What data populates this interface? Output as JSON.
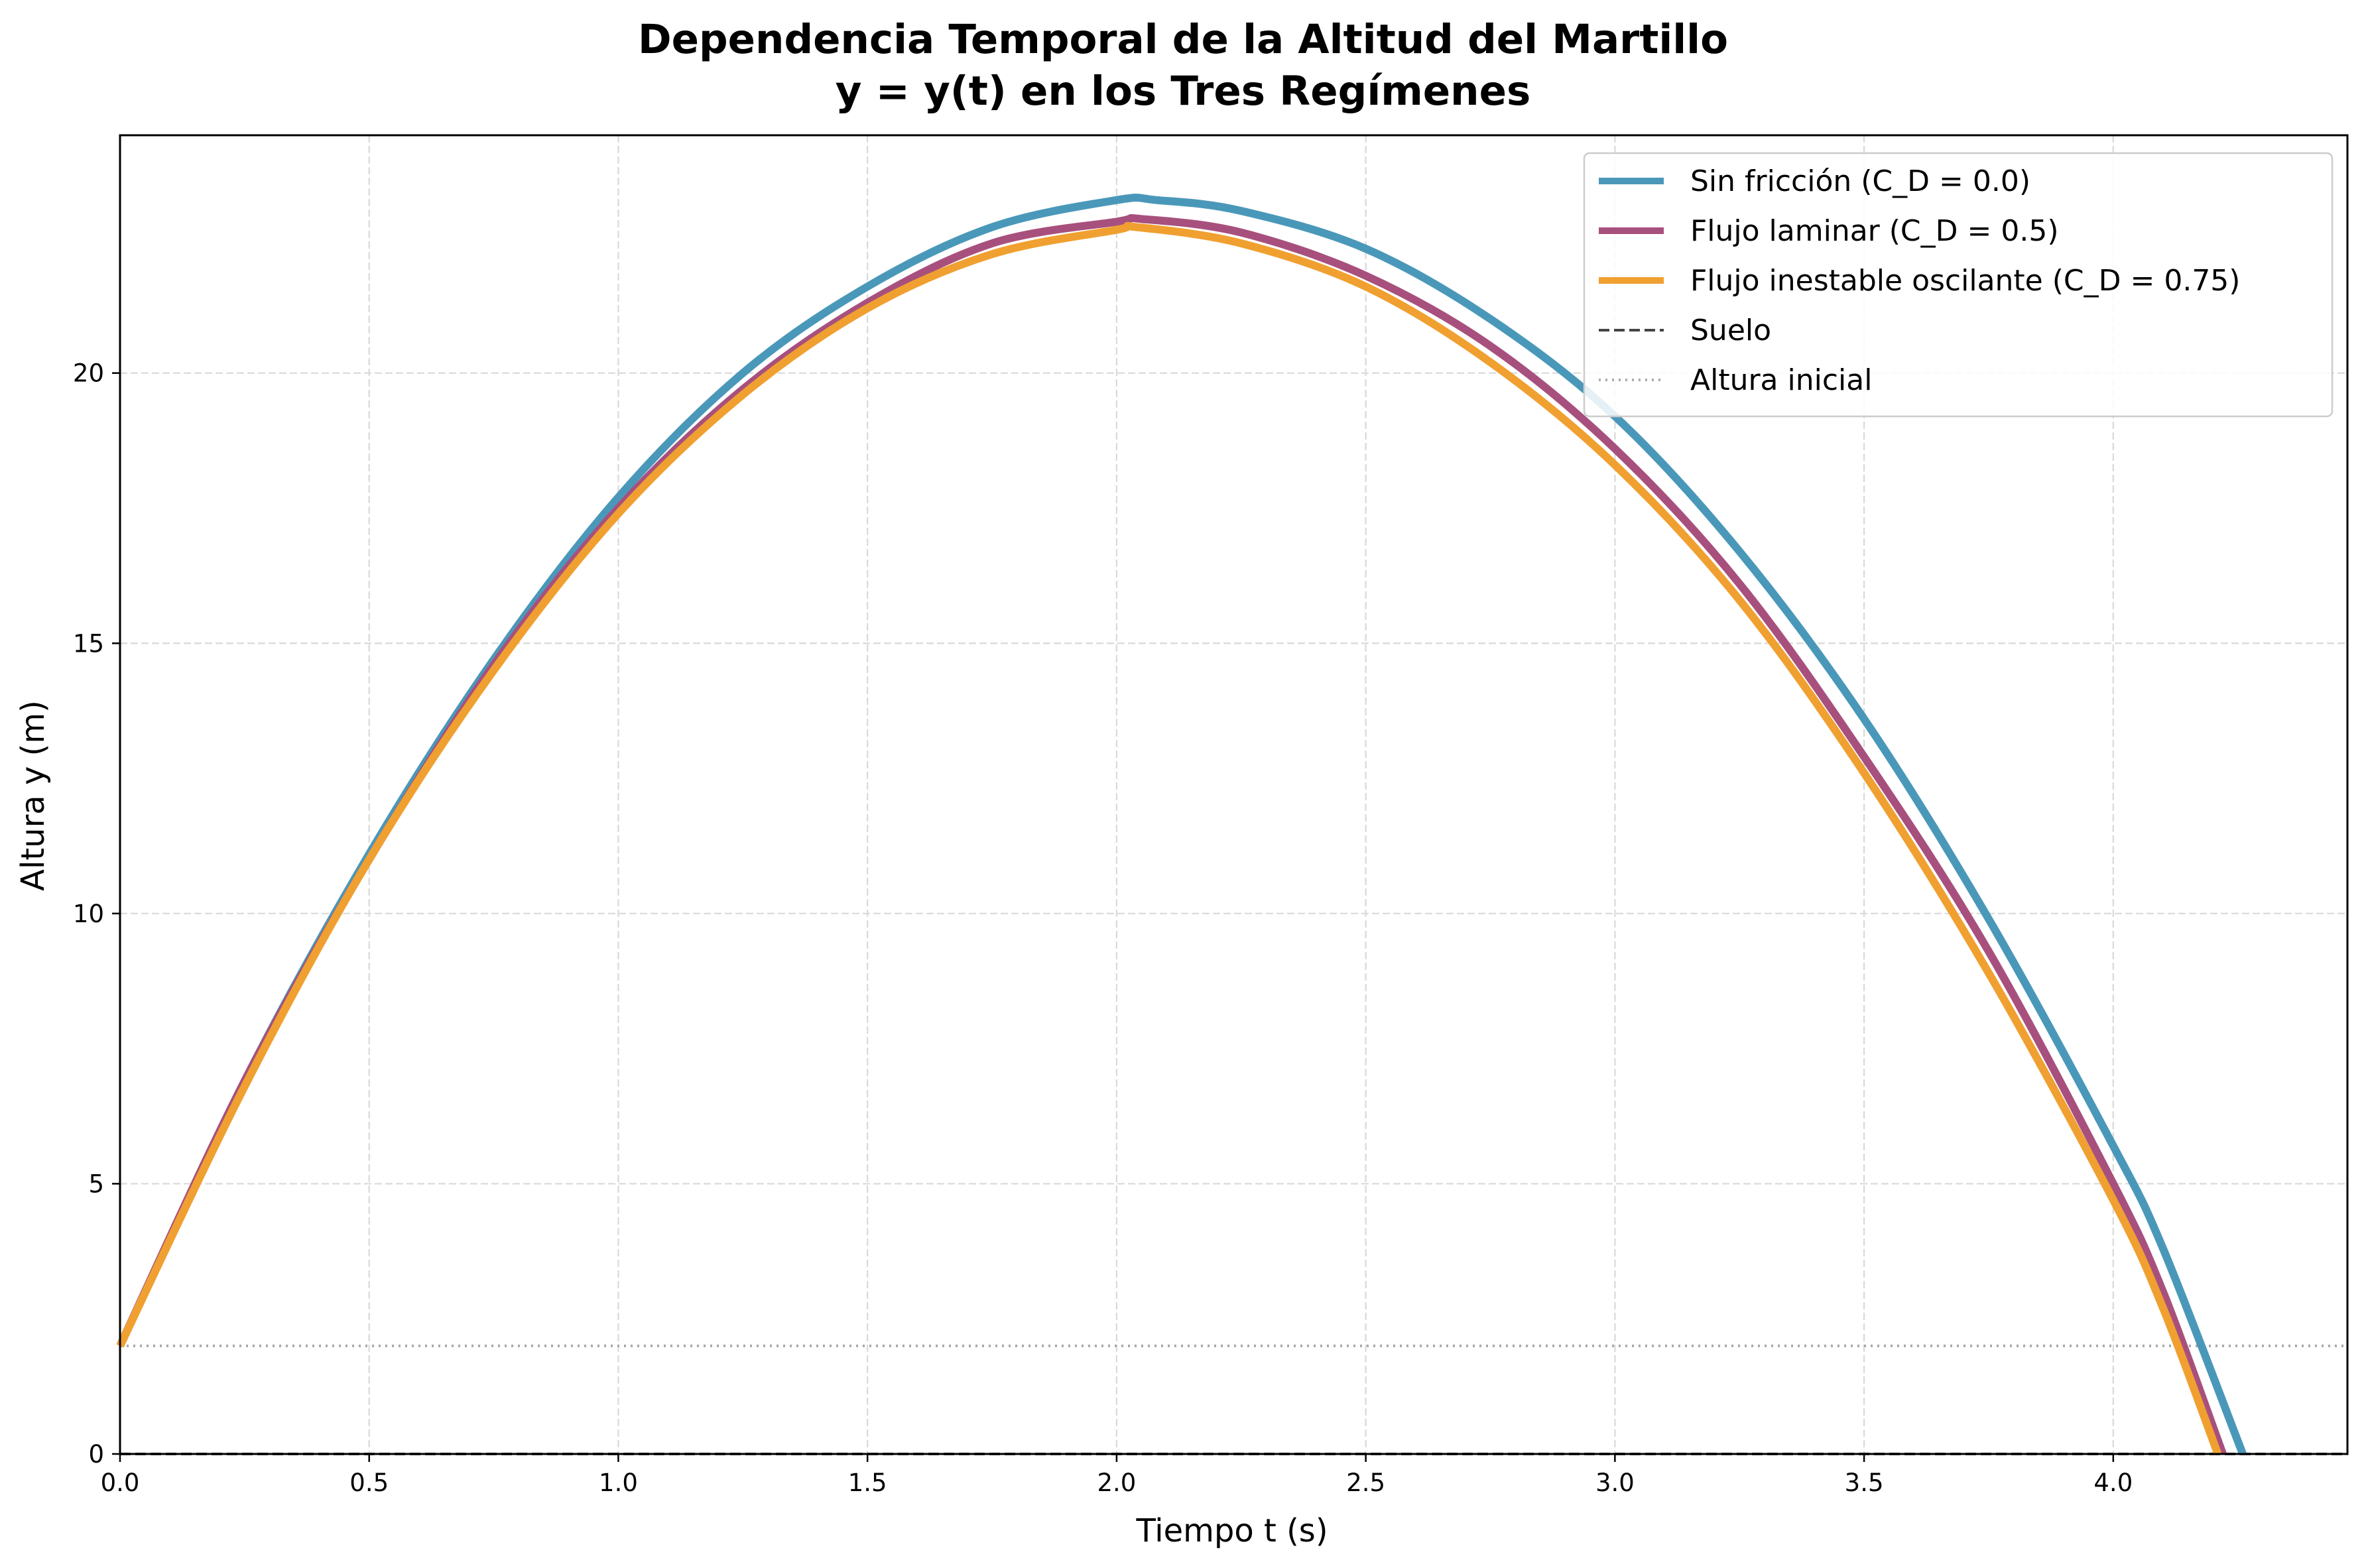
{
  "chart_data": {
    "type": "line",
    "title": [
      "Dependencia Temporal de la Altitud del Martillo",
      "y = y(t) en los Tres Regímenes"
    ],
    "xlabel": "Tiempo t (s)",
    "ylabel": "Altura y (m)",
    "xlim": [
      0.0,
      4.47
    ],
    "ylim": [
      0,
      24.4
    ],
    "grid": true,
    "legend_position": "top-right",
    "x_ticks": [
      "0.0",
      "0.5",
      "1.0",
      "1.5",
      "2.0",
      "2.5",
      "3.0",
      "3.5",
      "4.0"
    ],
    "x_tick_values": [
      0.0,
      0.5,
      1.0,
      1.5,
      2.0,
      2.5,
      3.0,
      3.5,
      4.0
    ],
    "y_ticks": [
      "0",
      "5",
      "10",
      "15",
      "20"
    ],
    "y_tick_values": [
      0,
      5,
      10,
      15,
      20
    ],
    "series": [
      {
        "name": "Sin fricción (C_D = 0.0)",
        "color": "#4a98b9",
        "x": [
          0.0,
          0.25,
          0.5,
          0.75,
          1.0,
          1.25,
          1.5,
          1.75,
          2.0,
          2.08,
          2.25,
          2.5,
          2.75,
          3.0,
          3.25,
          3.5,
          3.75,
          4.0,
          4.1,
          4.26
        ],
        "y": [
          2.0,
          6.9,
          11.1,
          14.7,
          17.7,
          20.0,
          21.6,
          22.7,
          23.2,
          23.2,
          23.0,
          22.3,
          21.0,
          19.2,
          16.7,
          13.6,
          9.9,
          5.7,
          3.8,
          0.0
        ]
      },
      {
        "name": "Flujo laminar (C_D = 0.5)",
        "color": "#a8507d",
        "x": [
          0.0,
          0.25,
          0.5,
          0.75,
          1.0,
          1.25,
          1.5,
          1.75,
          2.0,
          2.05,
          2.25,
          2.5,
          2.75,
          3.0,
          3.25,
          3.5,
          3.75,
          4.0,
          4.1,
          4.22
        ],
        "y": [
          2.0,
          6.9,
          11.0,
          14.6,
          17.5,
          19.7,
          21.3,
          22.4,
          22.8,
          22.85,
          22.6,
          21.8,
          20.5,
          18.6,
          16.1,
          12.9,
          9.3,
          5.0,
          3.0,
          0.0
        ]
      },
      {
        "name": "Flujo inestable oscilante (C_D = 0.75)",
        "color": "#f0a030",
        "x": [
          0.0,
          0.25,
          0.5,
          0.75,
          1.0,
          1.25,
          1.5,
          1.75,
          2.0,
          2.04,
          2.25,
          2.5,
          2.75,
          3.0,
          3.25,
          3.5,
          3.75,
          4.0,
          4.1,
          4.21
        ],
        "y": [
          2.0,
          6.8,
          11.0,
          14.5,
          17.4,
          19.6,
          21.2,
          22.2,
          22.65,
          22.7,
          22.4,
          21.6,
          20.2,
          18.3,
          15.8,
          12.6,
          8.9,
          4.7,
          2.7,
          0.0
        ]
      }
    ],
    "reference_lines": [
      {
        "name": "Suelo",
        "y": 0,
        "color": "#444444",
        "style": "dashed"
      },
      {
        "name": "Altura inicial",
        "y": 2,
        "color": "#aaaaaa",
        "style": "dotted"
      }
    ]
  }
}
